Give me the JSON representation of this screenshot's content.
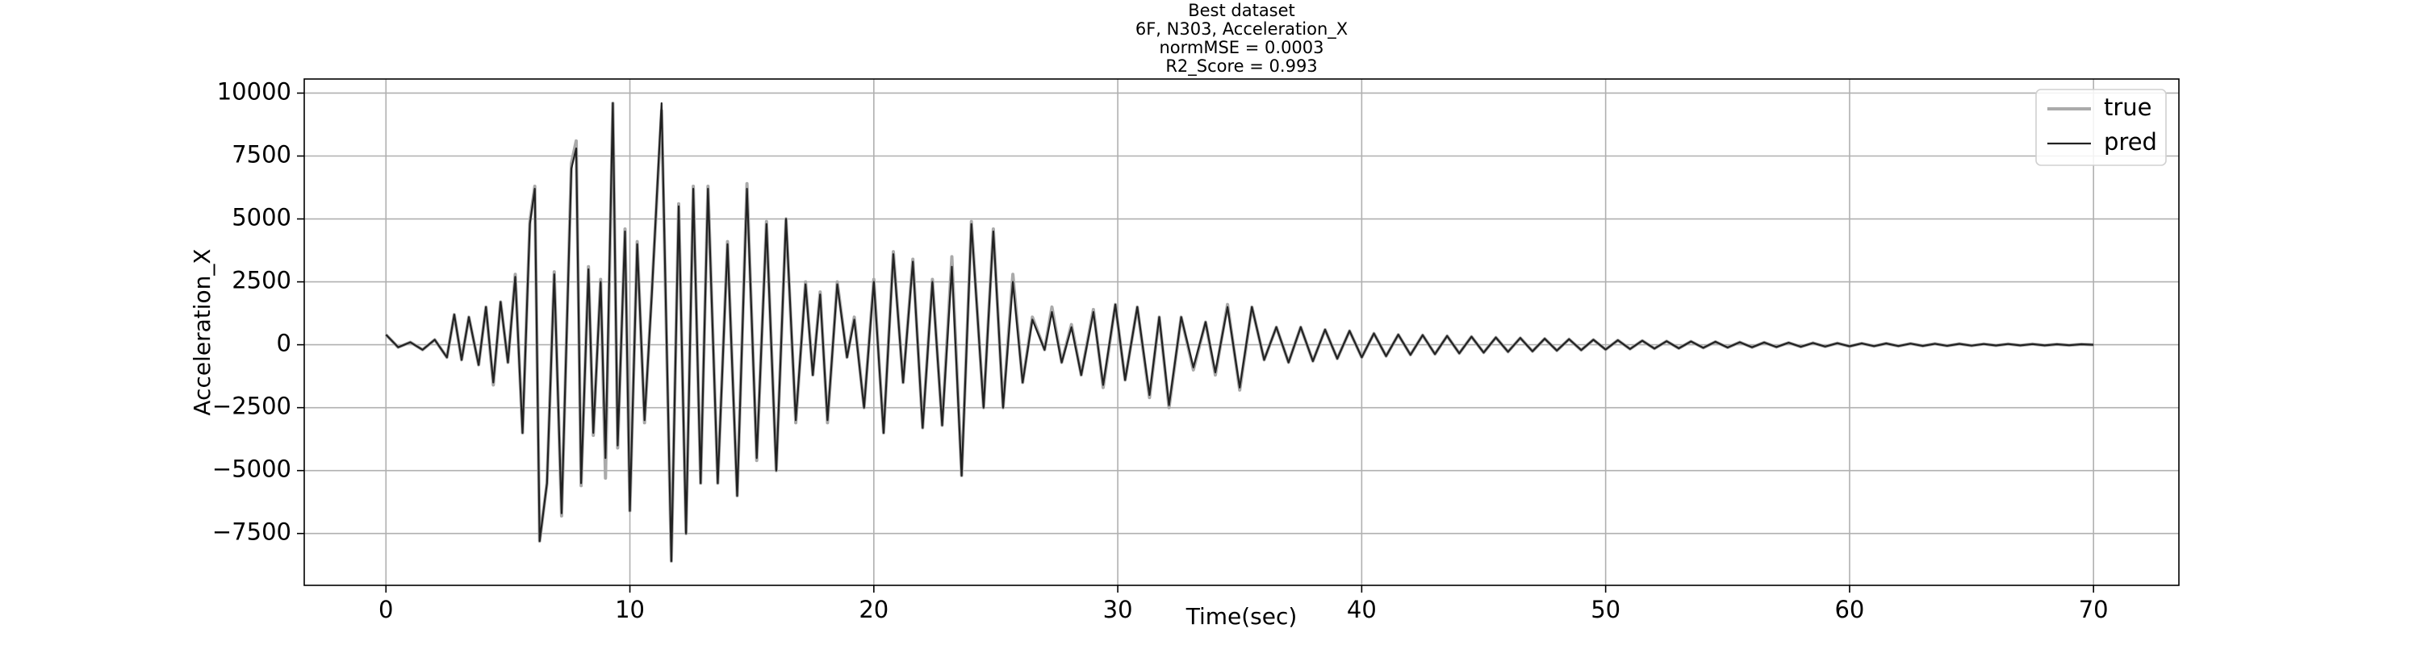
{
  "chart_data": {
    "type": "line",
    "title_lines": [
      "Best dataset",
      "6F, N303, Acceleration_X",
      "normMSE = 0.0003",
      "R2_Score = 0.993"
    ],
    "xlabel": "Time(sec)",
    "ylabel": "Acceleration_X",
    "x": [
      0,
      0.5,
      1,
      1.5,
      2,
      2.5,
      2.8,
      3.1,
      3.4,
      3.8,
      4.1,
      4.4,
      4.7,
      5.0,
      5.3,
      5.6,
      5.9,
      6.1,
      6.3,
      6.6,
      6.9,
      7.2,
      7.6,
      7.8,
      8.0,
      8.3,
      8.5,
      8.8,
      9.0,
      9.3,
      9.5,
      9.8,
      10.0,
      10.3,
      10.6,
      10.9,
      11.3,
      11.7,
      12.0,
      12.3,
      12.6,
      12.9,
      13.2,
      13.6,
      14.0,
      14.4,
      14.8,
      15.2,
      15.6,
      16.0,
      16.4,
      16.8,
      17.2,
      17.5,
      17.8,
      18.1,
      18.5,
      18.9,
      19.2,
      19.6,
      20.0,
      20.4,
      20.8,
      21.2,
      21.6,
      22.0,
      22.4,
      22.8,
      23.2,
      23.6,
      24.0,
      24.5,
      24.9,
      25.3,
      25.7,
      26.1,
      26.5,
      27.0,
      27.3,
      27.7,
      28.1,
      28.5,
      29.0,
      29.4,
      29.9,
      30.3,
      30.8,
      31.3,
      31.7,
      32.1,
      32.6,
      33.1,
      33.6,
      34.0,
      34.5,
      35.0,
      35.5,
      36.0,
      36.5,
      37.0,
      37.5,
      38.0,
      38.5,
      39.0,
      39.5,
      40.0,
      40.5,
      41.0,
      41.5,
      42,
      42.5,
      43,
      43.5,
      44,
      44.5,
      45,
      45.5,
      46,
      46.5,
      47,
      47.5,
      48,
      48.5,
      49,
      49.5,
      50,
      50.5,
      51,
      51.5,
      52,
      52.5,
      53,
      53.5,
      54,
      54.5,
      55,
      55.5,
      56,
      56.5,
      57,
      57.5,
      58,
      58.5,
      59,
      59.5,
      60,
      60.5,
      61,
      61.5,
      62,
      62.5,
      63,
      63.5,
      64,
      64.5,
      65,
      65.5,
      66,
      66.5,
      67,
      67.5,
      68,
      68.5,
      69,
      69.5,
      70
    ],
    "series": [
      {
        "name": "true",
        "color": "#aaaaaa",
        "values": [
          400,
          -100,
          100,
          -200,
          200,
          -500,
          1200,
          -600,
          1100,
          -800,
          1500,
          -1600,
          1700,
          -700,
          2800,
          -3500,
          4900,
          6300,
          -7800,
          -5500,
          2900,
          -6800,
          7200,
          8100,
          -5600,
          3100,
          -3600,
          2600,
          -5300,
          9600,
          -4100,
          4600,
          -6600,
          4100,
          -3100,
          2100,
          9300,
          -8600,
          5600,
          -7500,
          6300,
          -5500,
          6300,
          -5500,
          4100,
          -6000,
          6400,
          -4600,
          4900,
          -5000,
          5000,
          -3100,
          2500,
          -1200,
          2100,
          -3100,
          2500,
          -500,
          1100,
          -2500,
          2600,
          -3500,
          3700,
          -1500,
          3400,
          -3300,
          2600,
          -3200,
          3500,
          -5200,
          4900,
          -2500,
          4600,
          -2500,
          2800,
          -1500,
          1100,
          -200,
          1500,
          -700,
          800,
          -1200,
          1400,
          -1700,
          1600,
          -1400,
          1500,
          -2100,
          1100,
          -2500,
          1100,
          -1000,
          900,
          -1200,
          1600,
          -1800,
          1500,
          -600,
          700,
          -700,
          700,
          -650,
          600,
          -550,
          550,
          -500,
          450,
          -450,
          400,
          -400,
          380,
          -370,
          350,
          -340,
          320,
          -310,
          290,
          -280,
          270,
          -260,
          240,
          -230,
          220,
          -210,
          200,
          -190,
          180,
          -170,
          160,
          -150,
          140,
          -140,
          130,
          -120,
          120,
          -110,
          100,
          -100,
          90,
          -90,
          80,
          -80,
          70,
          -70,
          60,
          -60,
          55,
          -55,
          50,
          -50,
          45,
          -45,
          40,
          -40,
          35,
          -35,
          30,
          -30,
          30,
          -25,
          25,
          -25,
          20,
          -20,
          20,
          0
        ]
      },
      {
        "name": "pred",
        "color": "#222222",
        "values": [
          400,
          -100,
          100,
          -200,
          200,
          -500,
          1200,
          -600,
          1100,
          -800,
          1500,
          -1500,
          1700,
          -700,
          2700,
          -3500,
          4800,
          6200,
          -7800,
          -5500,
          2800,
          -6700,
          7000,
          7800,
          -5500,
          3000,
          -3500,
          2500,
          -4500,
          9600,
          -4000,
          4500,
          -6600,
          4000,
          -3000,
          2000,
          9600,
          -8600,
          5500,
          -7500,
          6200,
          -5500,
          6200,
          -5500,
          4000,
          -6000,
          6200,
          -4500,
          4800,
          -5000,
          5000,
          -3000,
          2400,
          -1200,
          2000,
          -3000,
          2400,
          -500,
          1000,
          -2500,
          2500,
          -3500,
          3600,
          -1500,
          3300,
          -3300,
          2500,
          -3200,
          3100,
          -5200,
          4800,
          -2500,
          4500,
          -2500,
          2500,
          -1500,
          1000,
          -200,
          1300,
          -700,
          700,
          -1200,
          1300,
          -1600,
          1600,
          -1400,
          1500,
          -2000,
          1100,
          -2400,
          1100,
          -900,
          900,
          -1100,
          1500,
          -1700,
          1500,
          -600,
          700,
          -700,
          700,
          -650,
          600,
          -550,
          550,
          -500,
          450,
          -450,
          400,
          -400,
          380,
          -370,
          350,
          -340,
          320,
          -310,
          290,
          -280,
          270,
          -260,
          240,
          -230,
          220,
          -210,
          200,
          -190,
          180,
          -170,
          160,
          -150,
          140,
          -140,
          130,
          -120,
          120,
          -110,
          100,
          -100,
          90,
          -90,
          80,
          -80,
          70,
          -70,
          60,
          -60,
          55,
          -55,
          50,
          -50,
          45,
          -45,
          40,
          -40,
          35,
          -35,
          30,
          -30,
          30,
          -25,
          25,
          -25,
          20,
          -20,
          20,
          0
        ]
      }
    ],
    "xlim": [
      -3.35,
      73.5
    ],
    "xticks": [
      0,
      10,
      20,
      30,
      40,
      50,
      60,
      70
    ],
    "ylim": [
      -9560,
      10560
    ],
    "yticks": [
      {
        "value": -7500,
        "label": "−7500"
      },
      {
        "value": -5000,
        "label": "−5000"
      },
      {
        "value": -2500,
        "label": "−2500"
      },
      0,
      2500,
      5000,
      7500,
      10000
    ],
    "grid": true,
    "legend": "upper right"
  }
}
